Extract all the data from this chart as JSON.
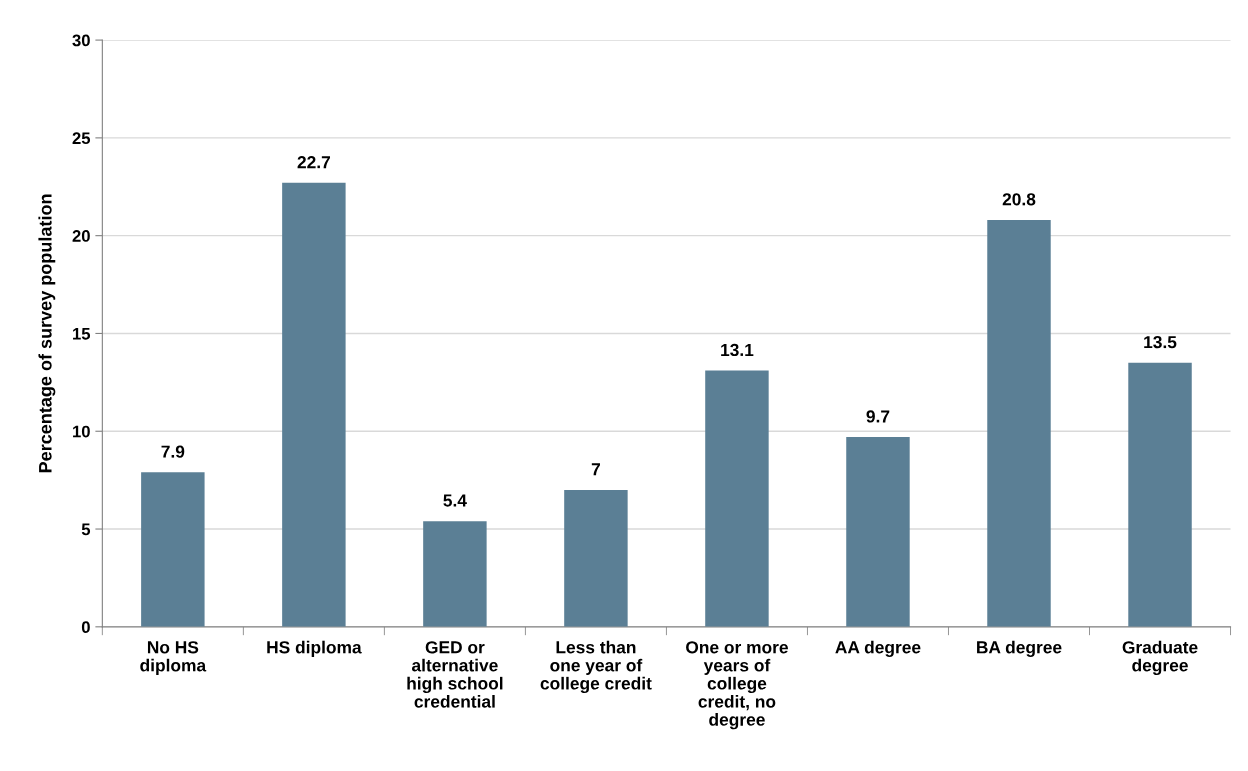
{
  "chart_data": {
    "type": "bar",
    "ylabel": "Percentage of survey population",
    "categories": [
      "No HS\ndiploma",
      "HS diploma",
      "GED or\nalternative\nhigh school\ncredential",
      "Less than\none year of\ncollege credit",
      "One or more\nyears of\ncollege\ncredit, no\ndegree",
      "AA degree",
      "BA degree",
      "Graduate\ndegree"
    ],
    "values": [
      7.9,
      22.7,
      5.4,
      7,
      13.1,
      9.7,
      20.8,
      13.5
    ],
    "color": "#5b7f95",
    "ylim": [
      0,
      30
    ],
    "yticks": [
      0,
      5,
      10,
      15,
      20,
      25,
      30
    ],
    "grid": "y",
    "data_labels": true
  }
}
